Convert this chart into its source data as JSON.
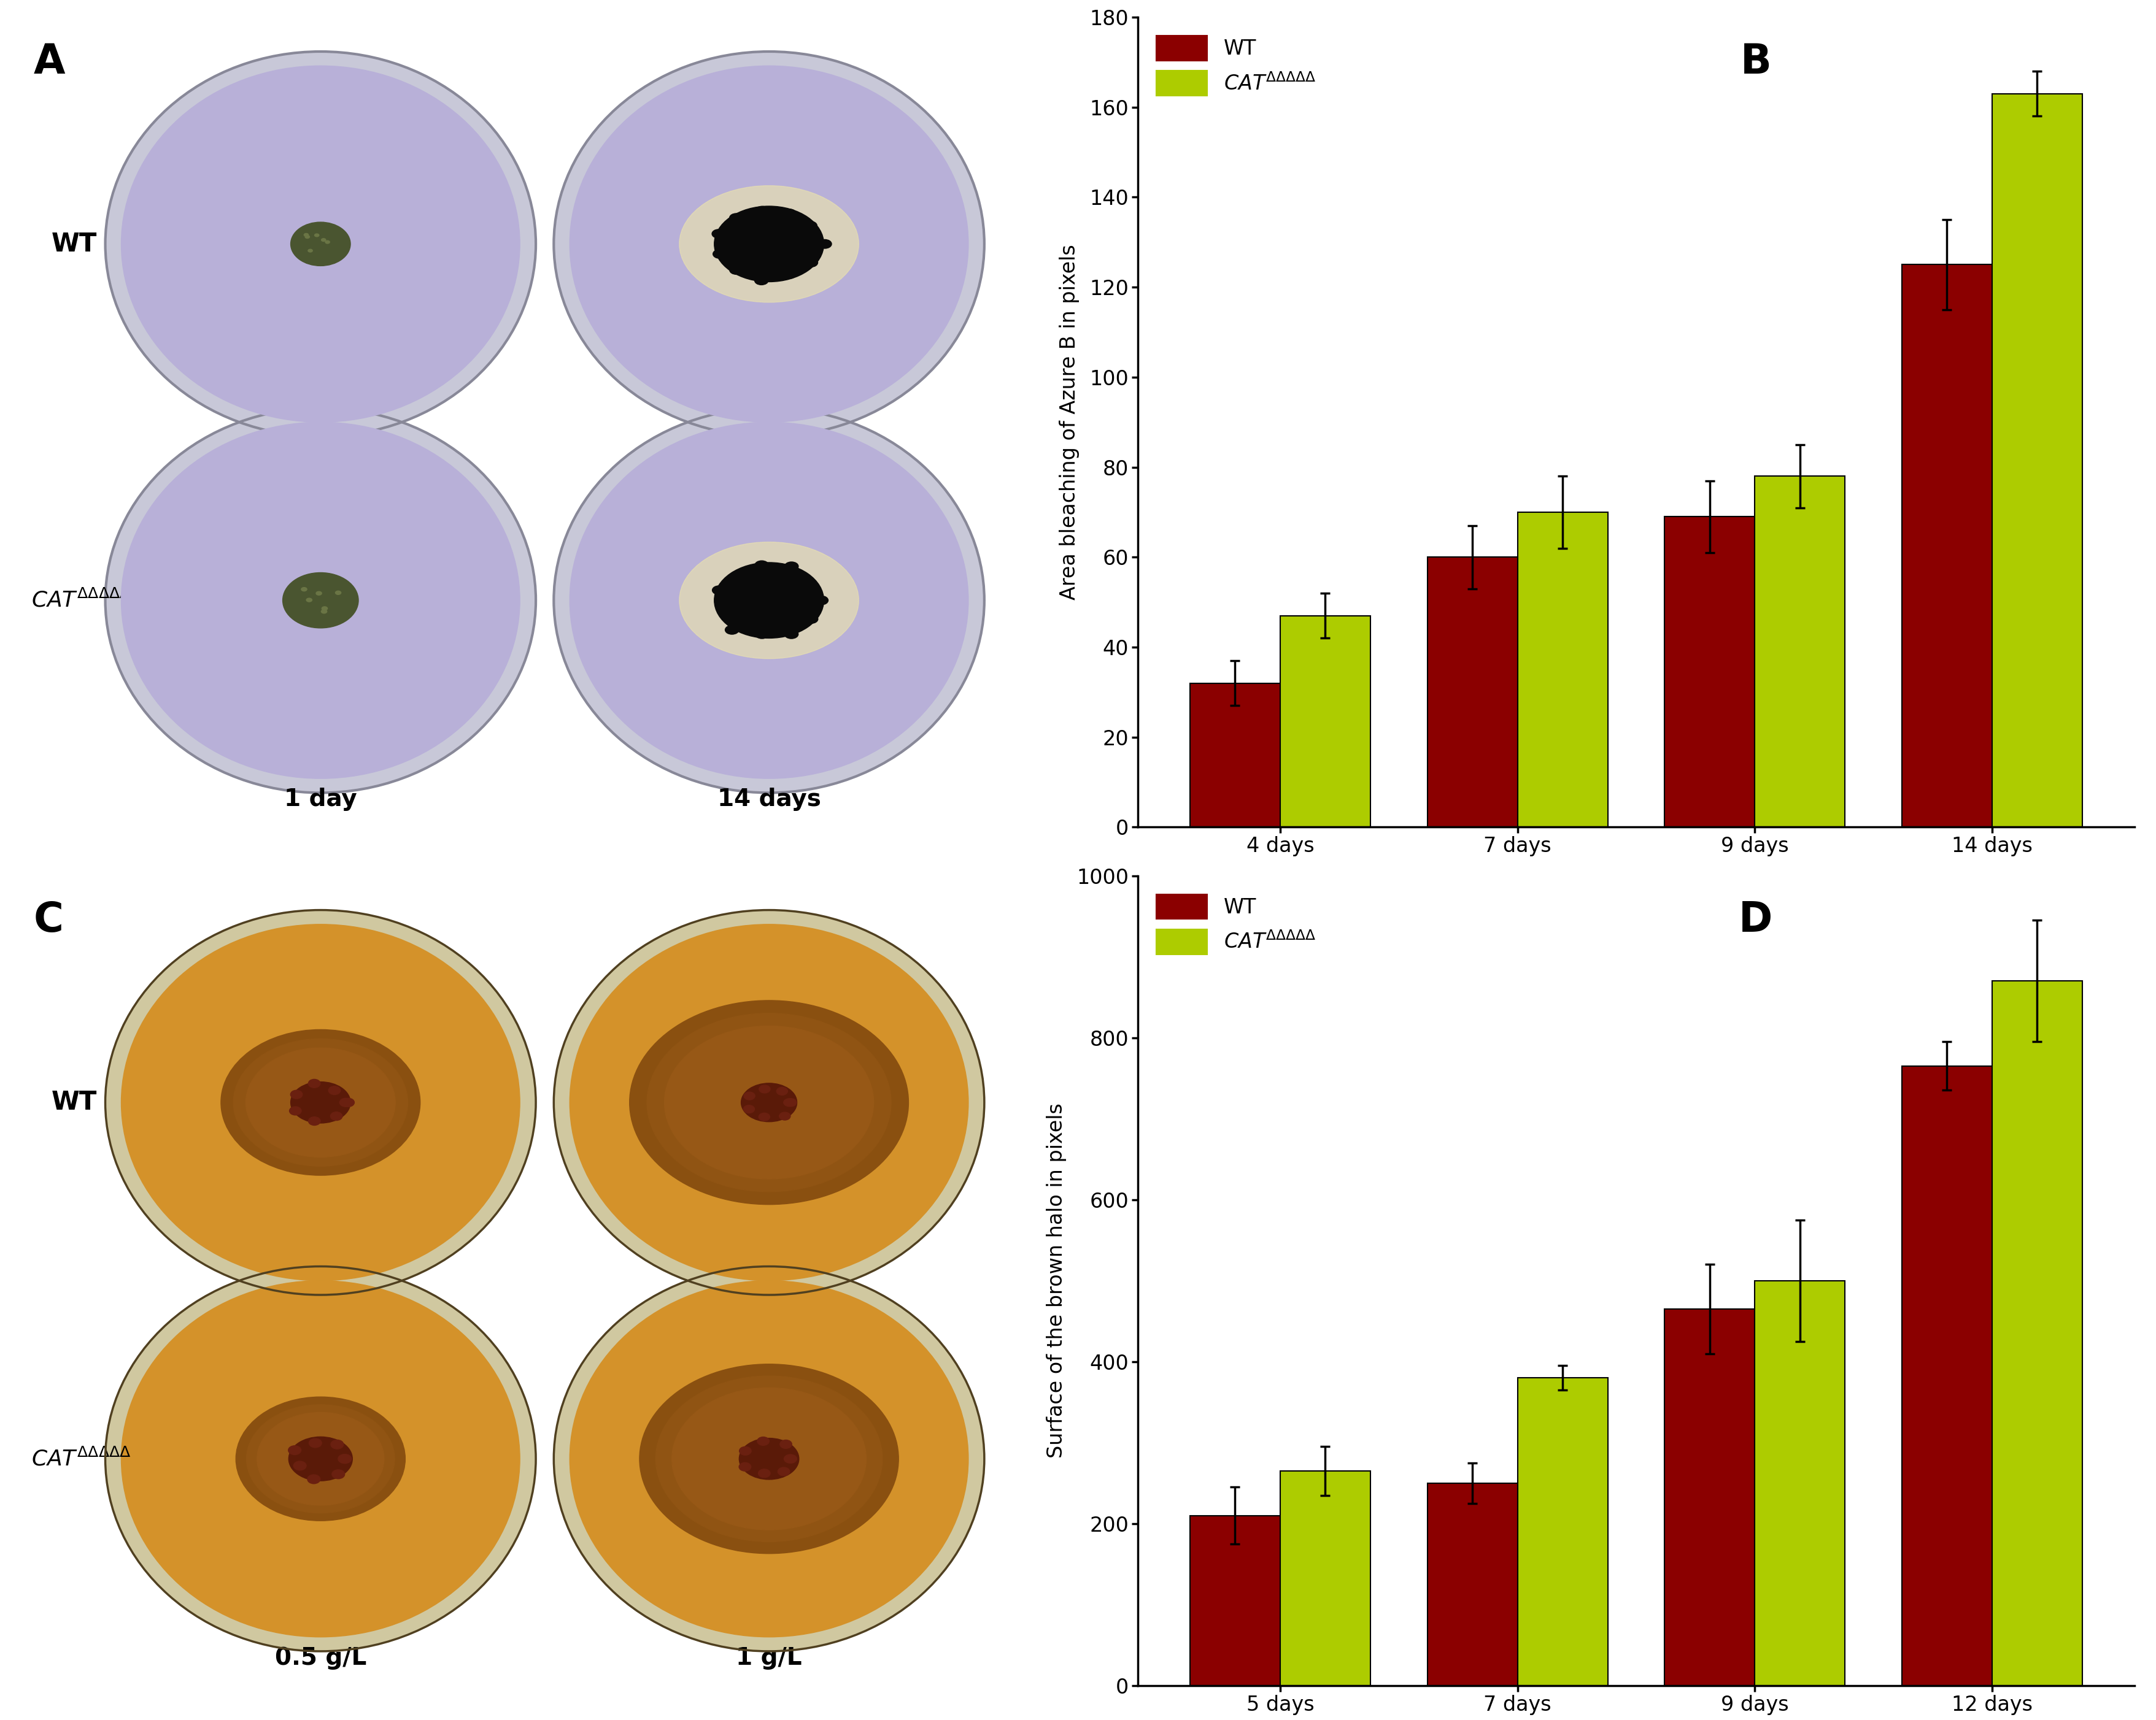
{
  "chart_B": {
    "title": "B",
    "categories": [
      "4 days",
      "7 days",
      "9 days",
      "14 days"
    ],
    "wt_values": [
      32,
      60,
      69,
      125
    ],
    "cat_values": [
      47,
      70,
      78,
      163
    ],
    "wt_errors": [
      5,
      7,
      8,
      10
    ],
    "cat_errors": [
      5,
      8,
      7,
      5
    ],
    "ylabel": "Area bleaching of Azure B in pixels",
    "ylim": [
      0,
      180
    ],
    "yticks": [
      0,
      20,
      40,
      60,
      80,
      100,
      120,
      140,
      160,
      180
    ]
  },
  "chart_D": {
    "title": "D",
    "categories": [
      "5 days",
      "7 days",
      "9 days",
      "12 days"
    ],
    "wt_values": [
      210,
      250,
      465,
      765
    ],
    "cat_values": [
      265,
      380,
      500,
      870
    ],
    "wt_errors": [
      35,
      25,
      55,
      30
    ],
    "cat_errors": [
      30,
      15,
      75,
      75
    ],
    "ylabel": "Surface of the brown halo in pixels",
    "ylim": [
      0,
      1000
    ],
    "yticks": [
      0,
      200,
      400,
      600,
      800,
      1000
    ]
  },
  "wt_color": "#8B0000",
  "cat_color": "#ADCC00",
  "bar_edge_color": "#000000",
  "bar_width": 0.38,
  "background_color": "#ffffff",
  "axis_linewidth": 2.5,
  "tick_fontsize": 24,
  "label_fontsize": 24,
  "legend_fontsize": 24,
  "panel_label_fontsize": 48,
  "errorbar_capsize": 6,
  "errorbar_linewidth": 2.5
}
